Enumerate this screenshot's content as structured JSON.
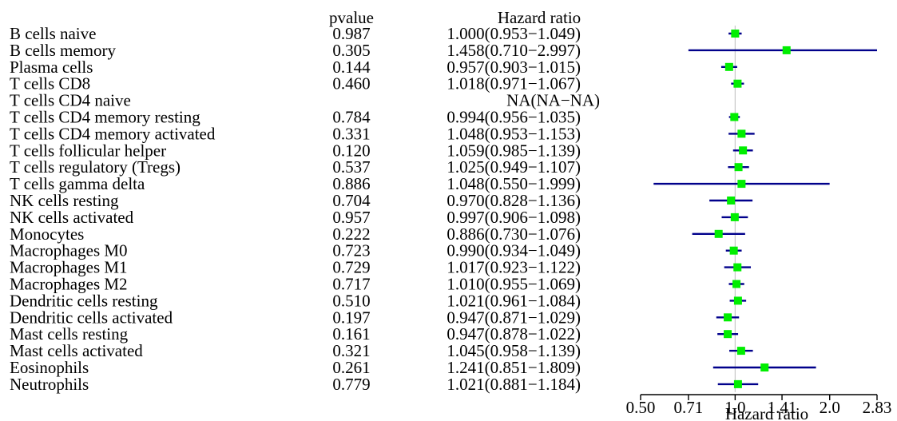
{
  "chart_data": {
    "type": "forest",
    "columns": {
      "pvalue": "pvalue",
      "hazard_ratio": "Hazard ratio"
    },
    "xlabel": "Hazard ratio",
    "x_scale": "log2",
    "xlim": [
      0.5,
      2.83
    ],
    "x_ticks": [
      {
        "value": 0.5,
        "label": "0.50"
      },
      {
        "value": 0.71,
        "label": "0.71"
      },
      {
        "value": 1.0,
        "label": "1.0"
      },
      {
        "value": 1.41,
        "label": "1.41"
      },
      {
        "value": 2.0,
        "label": "2.0"
      },
      {
        "value": 2.83,
        "label": "2.83"
      }
    ],
    "reference_line": 1.0,
    "colors": {
      "point": "#00ee00",
      "ci": "#00008b",
      "reference": "#c8c8c8",
      "text": "#000000"
    },
    "rows": [
      {
        "label": "B cells naive",
        "pvalue": "0.987",
        "hr_text": "1.000(0.953−1.049)",
        "hr": 1.0,
        "lower": 0.953,
        "upper": 1.049
      },
      {
        "label": "B cells memory",
        "pvalue": "0.305",
        "hr_text": "1.458(0.710−2.997)",
        "hr": 1.458,
        "lower": 0.71,
        "upper": 2.997
      },
      {
        "label": "Plasma cells",
        "pvalue": "0.144",
        "hr_text": "0.957(0.903−1.015)",
        "hr": 0.957,
        "lower": 0.903,
        "upper": 1.015
      },
      {
        "label": "T cells CD8",
        "pvalue": "0.460",
        "hr_text": "1.018(0.971−1.067)",
        "hr": 1.018,
        "lower": 0.971,
        "upper": 1.067
      },
      {
        "label": "T cells CD4 naive",
        "pvalue": "",
        "hr_text": "NA(NA−NA)",
        "hr": null,
        "lower": null,
        "upper": null
      },
      {
        "label": "T cells CD4 memory resting",
        "pvalue": "0.784",
        "hr_text": "0.994(0.956−1.035)",
        "hr": 0.994,
        "lower": 0.956,
        "upper": 1.035
      },
      {
        "label": "T cells CD4 memory activated",
        "pvalue": "0.331",
        "hr_text": "1.048(0.953−1.153)",
        "hr": 1.048,
        "lower": 0.953,
        "upper": 1.153
      },
      {
        "label": "T cells follicular helper",
        "pvalue": "0.120",
        "hr_text": "1.059(0.985−1.139)",
        "hr": 1.059,
        "lower": 0.985,
        "upper": 1.139
      },
      {
        "label": "T cells regulatory (Tregs)",
        "pvalue": "0.537",
        "hr_text": "1.025(0.949−1.107)",
        "hr": 1.025,
        "lower": 0.949,
        "upper": 1.107
      },
      {
        "label": "T cells gamma delta",
        "pvalue": "0.886",
        "hr_text": "1.048(0.550−1.999)",
        "hr": 1.048,
        "lower": 0.55,
        "upper": 1.999
      },
      {
        "label": "NK cells resting",
        "pvalue": "0.704",
        "hr_text": "0.970(0.828−1.136)",
        "hr": 0.97,
        "lower": 0.828,
        "upper": 1.136
      },
      {
        "label": "NK cells activated",
        "pvalue": "0.957",
        "hr_text": "0.997(0.906−1.098)",
        "hr": 0.997,
        "lower": 0.906,
        "upper": 1.098
      },
      {
        "label": "Monocytes",
        "pvalue": "0.222",
        "hr_text": "0.886(0.730−1.076)",
        "hr": 0.886,
        "lower": 0.73,
        "upper": 1.076
      },
      {
        "label": "Macrophages M0",
        "pvalue": "0.723",
        "hr_text": "0.990(0.934−1.049)",
        "hr": 0.99,
        "lower": 0.934,
        "upper": 1.049
      },
      {
        "label": "Macrophages M1",
        "pvalue": "0.729",
        "hr_text": "1.017(0.923−1.122)",
        "hr": 1.017,
        "lower": 0.923,
        "upper": 1.122
      },
      {
        "label": "Macrophages M2",
        "pvalue": "0.717",
        "hr_text": "1.010(0.955−1.069)",
        "hr": 1.01,
        "lower": 0.955,
        "upper": 1.069
      },
      {
        "label": "Dendritic cells resting",
        "pvalue": "0.510",
        "hr_text": "1.021(0.961−1.084)",
        "hr": 1.021,
        "lower": 0.961,
        "upper": 1.084
      },
      {
        "label": "Dendritic cells activated",
        "pvalue": "0.197",
        "hr_text": "0.947(0.871−1.029)",
        "hr": 0.947,
        "lower": 0.871,
        "upper": 1.029
      },
      {
        "label": "Mast cells resting",
        "pvalue": "0.161",
        "hr_text": "0.947(0.878−1.022)",
        "hr": 0.947,
        "lower": 0.878,
        "upper": 1.022
      },
      {
        "label": "Mast cells activated",
        "pvalue": "0.321",
        "hr_text": "1.045(0.958−1.139)",
        "hr": 1.045,
        "lower": 0.958,
        "upper": 1.139
      },
      {
        "label": "Eosinophils",
        "pvalue": "0.261",
        "hr_text": "1.241(0.851−1.809)",
        "hr": 1.241,
        "lower": 0.851,
        "upper": 1.809
      },
      {
        "label": "Neutrophils",
        "pvalue": "0.779",
        "hr_text": "1.021(0.881−1.184)",
        "hr": 1.021,
        "lower": 0.881,
        "upper": 1.184
      }
    ]
  }
}
